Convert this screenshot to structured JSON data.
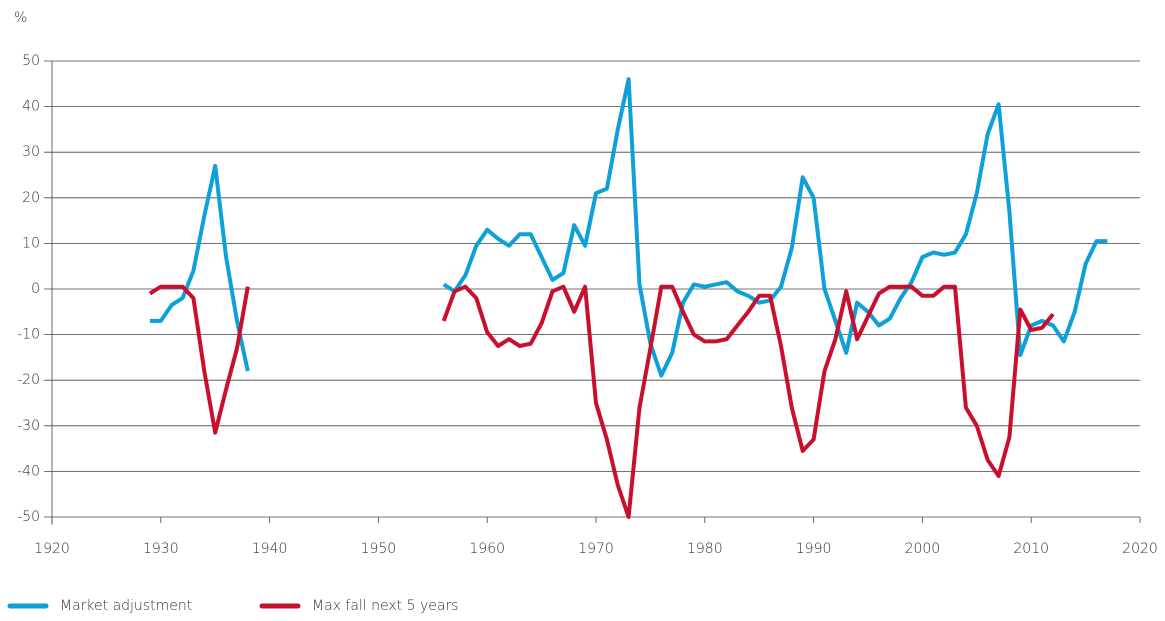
{
  "chart_data": {
    "type": "line",
    "y_label": "%",
    "x": [
      1929,
      1930,
      1931,
      1932,
      1933,
      1934,
      1935,
      1936,
      1937,
      1938,
      1939,
      1940,
      1941,
      1942,
      1943,
      1944,
      1945,
      1946,
      1947,
      1948,
      1949,
      1950,
      1951,
      1952,
      1953,
      1954,
      1955,
      1956,
      1957,
      1958,
      1959,
      1960,
      1961,
      1962,
      1963,
      1964,
      1965,
      1966,
      1967,
      1968,
      1969,
      1970,
      1971,
      1972,
      1973,
      1974,
      1975,
      1976,
      1977,
      1978,
      1979,
      1980,
      1981,
      1982,
      1983,
      1984,
      1985,
      1986,
      1987,
      1988,
      1989,
      1990,
      1991,
      1992,
      1993,
      1994,
      1995,
      1996,
      1997,
      1998,
      1999,
      2000,
      2001,
      2002,
      2003,
      2004,
      2005,
      2006,
      2007,
      2008,
      2009,
      2010,
      2011,
      2012,
      2013,
      2014,
      2015,
      2016,
      2017
    ],
    "series": [
      {
        "name": "Market adjustment",
        "color": "#0ea0d8",
        "values": [
          -7,
          -7,
          -3.5,
          -2,
          4,
          16,
          27,
          7,
          -7,
          -18,
          null,
          null,
          null,
          null,
          null,
          null,
          null,
          null,
          null,
          null,
          null,
          null,
          null,
          null,
          null,
          null,
          null,
          1,
          -0.5,
          3,
          9.5,
          13,
          11,
          9.5,
          12,
          12,
          7,
          2,
          3.5,
          14,
          9.5,
          21,
          22,
          35,
          46,
          1,
          -12,
          -19,
          -14,
          -3,
          1,
          0.5,
          1,
          1.5,
          -0.5,
          -1.5,
          -3,
          -2.5,
          0.5,
          9,
          24.5,
          20,
          0,
          -7,
          -14,
          -3,
          -5,
          -8,
          -6.5,
          -2,
          1.5,
          7,
          8,
          7.5,
          8,
          12,
          21,
          34,
          40.5,
          17,
          -14.5,
          -8,
          -7,
          -8,
          -11.5,
          -5,
          5.5,
          10.5,
          10.5
        ]
      },
      {
        "name": "Max fall next 5 years",
        "color": "#c8102e",
        "values": [
          -1,
          0.5,
          0.5,
          0.5,
          -2,
          -18,
          -31.5,
          -22,
          -13,
          0.5,
          null,
          null,
          null,
          null,
          null,
          null,
          null,
          null,
          null,
          null,
          null,
          null,
          null,
          null,
          null,
          null,
          null,
          -7,
          -0.5,
          0.5,
          -2,
          -9.5,
          -12.5,
          -11,
          -12.5,
          -12,
          -7.5,
          -0.5,
          0.5,
          -5,
          0.5,
          -25,
          -33,
          -43,
          -50,
          -26,
          -13,
          0.5,
          0.5,
          -5,
          -10,
          -11.5,
          -11.5,
          -11,
          -8,
          -5,
          -1.5,
          -1.5,
          -12.5,
          -26,
          -35.5,
          -33,
          -18,
          -11,
          -0.5,
          -11,
          -6,
          -1,
          0.5,
          0.5,
          0.5,
          -1.5,
          -1.5,
          0.5,
          0.5,
          -26,
          -30,
          -37.5,
          -41,
          -32.5,
          -4.5,
          -9,
          -8.5,
          -5.5,
          null,
          null,
          null,
          null,
          null
        ]
      }
    ],
    "xlim": [
      1920,
      2020
    ],
    "xticks": [
      1920,
      1930,
      1940,
      1950,
      1960,
      1970,
      1980,
      1990,
      2000,
      2010,
      2020
    ],
    "ylim": [
      -50,
      50
    ],
    "yticks": [
      -50,
      -40,
      -30,
      -20,
      -10,
      0,
      10,
      20,
      30,
      40,
      50
    ],
    "grid": true,
    "legend": "bottom"
  }
}
